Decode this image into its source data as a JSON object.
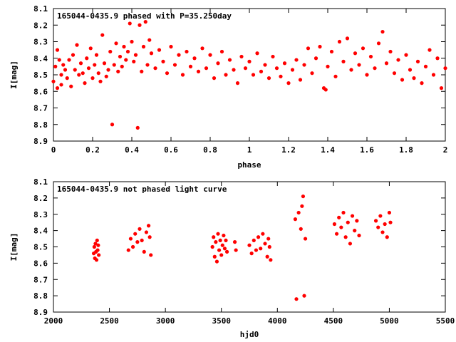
{
  "chart_data": [
    {
      "type": "scatter",
      "title": "165044-0435.9 phased with P=35.250day",
      "xlabel": "phase",
      "ylabel": "I[mag]",
      "xlim": [
        0,
        2
      ],
      "ylim": [
        8.1,
        8.9
      ],
      "y_inverted": true,
      "grid": false,
      "marker": "filled-dot",
      "color": "#ff0000",
      "x_ticks": [
        "0",
        "0.2",
        "0.4",
        "0.6",
        "0.8",
        "1",
        "1.2",
        "1.4",
        "1.6",
        "1.8",
        "2"
      ],
      "y_ticks": [
        "8.1",
        "8.2",
        "8.3",
        "8.4",
        "8.5",
        "8.6",
        "8.7",
        "8.8",
        "8.9"
      ],
      "series": [
        {
          "values": [
            [
              0.0,
              8.54
            ],
            [
              0.01,
              8.45
            ],
            [
              0.02,
              8.58
            ],
            [
              0.02,
              8.35
            ],
            [
              0.03,
              8.41
            ],
            [
              0.04,
              8.5
            ],
            [
              0.04,
              8.56
            ],
            [
              0.05,
              8.44
            ],
            [
              0.06,
              8.47
            ],
            [
              0.07,
              8.52
            ],
            [
              0.08,
              8.41
            ],
            [
              0.09,
              8.57
            ],
            [
              0.1,
              8.38
            ],
            [
              0.11,
              8.47
            ],
            [
              0.12,
              8.32
            ],
            [
              0.13,
              8.5
            ],
            [
              0.14,
              8.43
            ],
            [
              0.15,
              8.49
            ],
            [
              0.16,
              8.55
            ],
            [
              0.17,
              8.4
            ],
            [
              0.18,
              8.46
            ],
            [
              0.19,
              8.34
            ],
            [
              0.2,
              8.52
            ],
            [
              0.21,
              8.44
            ],
            [
              0.22,
              8.38
            ],
            [
              0.23,
              8.49
            ],
            [
              0.24,
              8.54
            ],
            [
              0.25,
              8.26
            ],
            [
              0.26,
              8.43
            ],
            [
              0.27,
              8.51
            ],
            [
              0.28,
              8.47
            ],
            [
              0.29,
              8.36
            ],
            [
              0.3,
              8.8
            ],
            [
              0.31,
              8.44
            ],
            [
              0.32,
              8.31
            ],
            [
              0.33,
              8.48
            ],
            [
              0.34,
              8.39
            ],
            [
              0.35,
              8.45
            ],
            [
              0.36,
              8.33
            ],
            [
              0.37,
              8.41
            ],
            [
              0.38,
              8.36
            ],
            [
              0.39,
              8.19
            ],
            [
              0.4,
              8.3
            ],
            [
              0.41,
              8.42
            ],
            [
              0.42,
              8.38
            ],
            [
              0.43,
              8.82
            ],
            [
              0.44,
              8.2
            ],
            [
              0.45,
              8.48
            ],
            [
              0.46,
              8.33
            ],
            [
              0.47,
              8.18
            ],
            [
              0.48,
              8.44
            ],
            [
              0.49,
              8.29
            ],
            [
              0.5,
              8.37
            ],
            [
              0.52,
              8.46
            ],
            [
              0.54,
              8.35
            ],
            [
              0.56,
              8.42
            ],
            [
              0.58,
              8.49
            ],
            [
              0.6,
              8.33
            ],
            [
              0.62,
              8.44
            ],
            [
              0.64,
              8.38
            ],
            [
              0.66,
              8.5
            ],
            [
              0.68,
              8.36
            ],
            [
              0.7,
              8.45
            ],
            [
              0.72,
              8.4
            ],
            [
              0.74,
              8.48
            ],
            [
              0.76,
              8.34
            ],
            [
              0.78,
              8.46
            ],
            [
              0.8,
              8.38
            ],
            [
              0.82,
              8.52
            ],
            [
              0.84,
              8.43
            ],
            [
              0.86,
              8.36
            ],
            [
              0.88,
              8.5
            ],
            [
              0.9,
              8.41
            ],
            [
              0.92,
              8.47
            ],
            [
              0.94,
              8.55
            ],
            [
              0.96,
              8.39
            ],
            [
              0.98,
              8.46
            ],
            [
              1.0,
              8.42
            ],
            [
              1.02,
              8.5
            ],
            [
              1.04,
              8.37
            ],
            [
              1.06,
              8.48
            ],
            [
              1.08,
              8.44
            ],
            [
              1.1,
              8.52
            ],
            [
              1.12,
              8.39
            ],
            [
              1.14,
              8.46
            ],
            [
              1.16,
              8.51
            ],
            [
              1.18,
              8.43
            ],
            [
              1.2,
              8.55
            ],
            [
              1.22,
              8.47
            ],
            [
              1.24,
              8.41
            ],
            [
              1.26,
              8.53
            ],
            [
              1.28,
              8.44
            ],
            [
              1.3,
              8.34
            ],
            [
              1.32,
              8.49
            ],
            [
              1.34,
              8.4
            ],
            [
              1.36,
              8.33
            ],
            [
              1.38,
              8.58
            ],
            [
              1.39,
              8.59
            ],
            [
              1.4,
              8.45
            ],
            [
              1.42,
              8.36
            ],
            [
              1.44,
              8.51
            ],
            [
              1.46,
              8.3
            ],
            [
              1.48,
              8.42
            ],
            [
              1.5,
              8.28
            ],
            [
              1.52,
              8.47
            ],
            [
              1.54,
              8.37
            ],
            [
              1.56,
              8.44
            ],
            [
              1.58,
              8.34
            ],
            [
              1.6,
              8.5
            ],
            [
              1.62,
              8.39
            ],
            [
              1.64,
              8.46
            ],
            [
              1.66,
              8.31
            ],
            [
              1.68,
              8.24
            ],
            [
              1.7,
              8.43
            ],
            [
              1.72,
              8.36
            ],
            [
              1.74,
              8.49
            ],
            [
              1.76,
              8.41
            ],
            [
              1.78,
              8.53
            ],
            [
              1.8,
              8.38
            ],
            [
              1.82,
              8.47
            ],
            [
              1.84,
              8.52
            ],
            [
              1.86,
              8.42
            ],
            [
              1.88,
              8.55
            ],
            [
              1.9,
              8.45
            ],
            [
              1.92,
              8.35
            ],
            [
              1.94,
              8.5
            ],
            [
              1.96,
              8.4
            ],
            [
              1.98,
              8.58
            ],
            [
              2.0,
              8.46
            ]
          ]
        }
      ]
    },
    {
      "type": "scatter",
      "title": "165044-0435.9 not phased light curve",
      "xlabel": "hjd0",
      "ylabel": "I[mag]",
      "xlim": [
        2000,
        5500
      ],
      "ylim": [
        8.1,
        8.9
      ],
      "y_inverted": true,
      "grid": false,
      "marker": "filled-dot",
      "color": "#ff0000",
      "x_ticks": [
        "2000",
        "2500",
        "3000",
        "3500",
        "4000",
        "4500",
        "5000",
        "5500"
      ],
      "y_ticks": [
        "8.1",
        "8.2",
        "8.3",
        "8.4",
        "8.5",
        "8.6",
        "8.7",
        "8.8",
        "8.9"
      ],
      "series": [
        {
          "values": [
            [
              2360,
              8.54
            ],
            [
              2365,
              8.5
            ],
            [
              2370,
              8.57
            ],
            [
              2375,
              8.48
            ],
            [
              2380,
              8.53
            ],
            [
              2385,
              8.58
            ],
            [
              2390,
              8.46
            ],
            [
              2395,
              8.52
            ],
            [
              2400,
              8.49
            ],
            [
              2405,
              8.55
            ],
            [
              2670,
              8.52
            ],
            [
              2690,
              8.45
            ],
            [
              2710,
              8.5
            ],
            [
              2730,
              8.42
            ],
            [
              2750,
              8.47
            ],
            [
              2770,
              8.39
            ],
            [
              2790,
              8.46
            ],
            [
              2810,
              8.53
            ],
            [
              2830,
              8.41
            ],
            [
              2850,
              8.37
            ],
            [
              2860,
              8.44
            ],
            [
              2870,
              8.55
            ],
            [
              3420,
              8.5
            ],
            [
              3430,
              8.44
            ],
            [
              3440,
              8.56
            ],
            [
              3450,
              8.47
            ],
            [
              3460,
              8.59
            ],
            [
              3470,
              8.42
            ],
            [
              3480,
              8.52
            ],
            [
              3490,
              8.46
            ],
            [
              3500,
              8.55
            ],
            [
              3510,
              8.49
            ],
            [
              3520,
              8.43
            ],
            [
              3530,
              8.51
            ],
            [
              3540,
              8.46
            ],
            [
              3550,
              8.53
            ],
            [
              3620,
              8.47
            ],
            [
              3630,
              8.52
            ],
            [
              3750,
              8.49
            ],
            [
              3770,
              8.54
            ],
            [
              3790,
              8.46
            ],
            [
              3810,
              8.52
            ],
            [
              3830,
              8.44
            ],
            [
              3850,
              8.51
            ],
            [
              3870,
              8.42
            ],
            [
              3890,
              8.48
            ],
            [
              3910,
              8.56
            ],
            [
              3920,
              8.45
            ],
            [
              3930,
              8.5
            ],
            [
              3940,
              8.58
            ],
            [
              4160,
              8.33
            ],
            [
              4170,
              8.82
            ],
            [
              4190,
              8.29
            ],
            [
              4210,
              8.39
            ],
            [
              4220,
              8.25
            ],
            [
              4230,
              8.19
            ],
            [
              4240,
              8.8
            ],
            [
              4250,
              8.45
            ],
            [
              4510,
              8.36
            ],
            [
              4530,
              8.42
            ],
            [
              4550,
              8.32
            ],
            [
              4570,
              8.38
            ],
            [
              4590,
              8.29
            ],
            [
              4610,
              8.44
            ],
            [
              4630,
              8.35
            ],
            [
              4650,
              8.48
            ],
            [
              4670,
              8.31
            ],
            [
              4690,
              8.4
            ],
            [
              4710,
              8.34
            ],
            [
              4730,
              8.43
            ],
            [
              4880,
              8.34
            ],
            [
              4900,
              8.38
            ],
            [
              4920,
              8.31
            ],
            [
              4940,
              8.41
            ],
            [
              4960,
              8.36
            ],
            [
              4980,
              8.44
            ],
            [
              5000,
              8.29
            ],
            [
              5010,
              8.35
            ]
          ]
        }
      ]
    }
  ]
}
